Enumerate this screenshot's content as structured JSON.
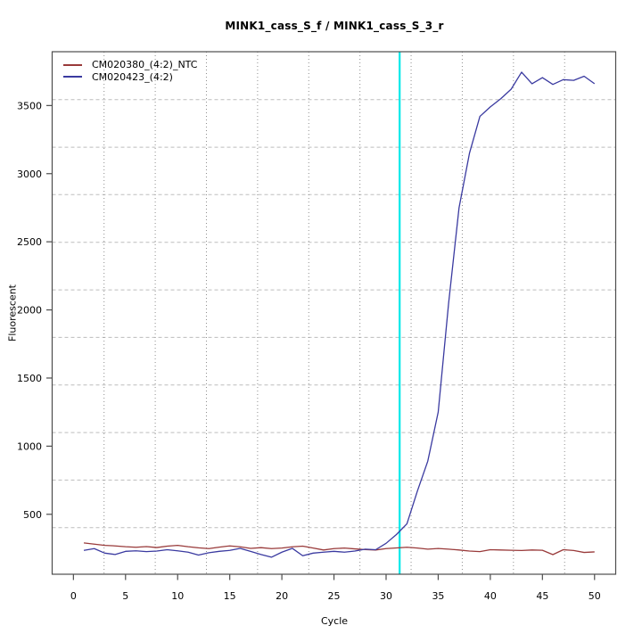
{
  "chart_data": {
    "type": "line",
    "title": "MINK1_cass_S_f / MINK1_cass_S_3_r",
    "xlabel": "Cycle",
    "ylabel": "Fluorescent",
    "x_ticks": [
      0,
      5,
      10,
      15,
      20,
      25,
      30,
      35,
      40,
      45,
      50
    ],
    "y_ticks": [
      500,
      1000,
      1500,
      2000,
      2500,
      3000,
      3500
    ],
    "xlim": [
      -2.04,
      52.03
    ],
    "ylim": [
      60,
      3895
    ],
    "legend_position": "top-left",
    "grid": {
      "vertical_x_cycles": [
        2.94,
        7.85,
        12.76,
        17.67,
        22.58,
        27.49,
        32.4,
        37.31,
        42.22,
        47.13
      ],
      "horizontal_y_values": [
        3543,
        3194,
        2846,
        2496,
        2147,
        1798,
        1449,
        1100,
        751,
        402
      ],
      "h_color": "#bdbdbd",
      "v_color": "#8e8e8e"
    },
    "threshold": {
      "x_cycle": 31.3,
      "color": "#00e9e9"
    },
    "axis_color": "#4d4d4d",
    "x": [
      1,
      2,
      3,
      4,
      5,
      6,
      7,
      8,
      9,
      10,
      11,
      12,
      13,
      14,
      15,
      16,
      17,
      18,
      19,
      20,
      21,
      22,
      23,
      24,
      25,
      26,
      27,
      28,
      29,
      30,
      31,
      32,
      33,
      34,
      35,
      36,
      37,
      38,
      39,
      40,
      41,
      42,
      43,
      44,
      45,
      46,
      47,
      48,
      49,
      50
    ],
    "series": [
      {
        "name": "CM020380_(4:2)_NTC",
        "color": "#993a3a",
        "values": [
          290,
          281,
          272,
          268,
          262,
          258,
          263,
          256,
          266,
          272,
          262,
          254,
          248,
          259,
          268,
          261,
          250,
          255,
          248,
          252,
          261,
          266,
          252,
          238,
          248,
          252,
          246,
          241,
          238,
          248,
          253,
          258,
          252,
          244,
          249,
          244,
          238,
          230,
          226,
          240,
          238,
          236,
          234,
          238,
          236,
          204,
          240,
          234,
          220,
          224
        ]
      },
      {
        "name": "CM020423_(4:2)",
        "color": "#3a3aa0",
        "values": [
          235,
          248,
          215,
          205,
          228,
          232,
          226,
          230,
          240,
          232,
          222,
          201,
          218,
          228,
          235,
          250,
          228,
          205,
          185,
          222,
          250,
          196,
          215,
          222,
          228,
          222,
          230,
          244,
          240,
          287,
          352,
          430,
          670,
          890,
          1250,
          2050,
          2750,
          3150,
          3420,
          3490,
          3550,
          3620,
          3745,
          3660,
          3705,
          3655,
          3690,
          3685,
          3715,
          3660
        ]
      }
    ]
  }
}
